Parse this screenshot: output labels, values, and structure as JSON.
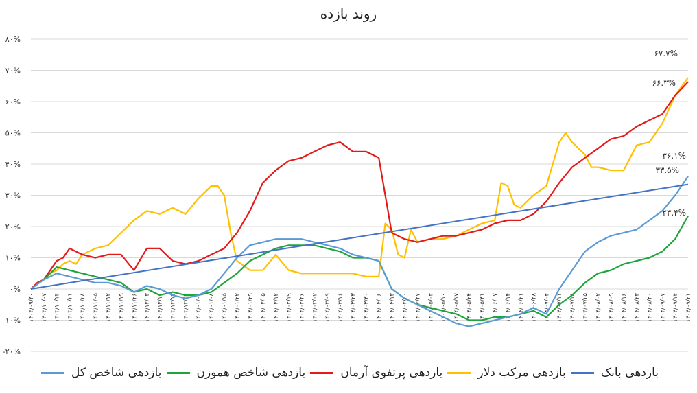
{
  "chart_data": {
    "type": "line",
    "title": "روند بازده",
    "ylim": [
      -20,
      80
    ],
    "yticks": [
      -20,
      -10,
      0,
      10,
      20,
      30,
      40,
      50,
      60,
      70,
      80
    ],
    "ytick_labels": [
      "-۲۰%",
      "-۱۰%",
      "۰%",
      "۱۰%",
      "۲۰%",
      "۳۰%",
      "۴۰%",
      "۵۰%",
      "۶۰%",
      "۷۰%",
      "۸۰%"
    ],
    "grid": true,
    "legend_position": "bottom",
    "x_labels": [
      "۱۴۰۳/۰۹/۳۰",
      "۱۴۰۳/۱۰/۰۷",
      "۱۴۰۳/۱۰/۱۴",
      "۱۴۰۳/۱۰/۲۱",
      "۱۴۰۳/۱۰/۲۸",
      "۱۴۰۳/۱۱/۰۵",
      "۱۴۰۳/۱۱/۱۲",
      "۱۴۰۳/۱۱/۱۹",
      "۱۴۰۳/۱۱/۲۶",
      "۱۴۰۳/۱۲/۰۳",
      "۱۴۰۳/۱۲/۱۰",
      "۱۴۰۳/۱۲/۱۷",
      "۱۴۰۳/۱۲/۲۴",
      "۱۴۰۴/۰۱/۰۱",
      "۱۴۰۴/۰۱/۰۸",
      "۱۴۰۴/۰۱/۱۵",
      "۱۴۰۴/۰۱/۲۲",
      "۱۴۰۴/۰۱/۲۹",
      "۱۴۰۴/۰۲/۰۵",
      "۱۴۰۴/۰۲/۱۲",
      "۱۴۰۴/۰۲/۱۹",
      "۱۴۰۴/۰۲/۲۶",
      "۱۴۰۴/۰۳/۰۲",
      "۱۴۰۴/۰۳/۰۹",
      "۱۴۰۴/۰۳/۱۶",
      "۱۴۰۴/۰۳/۲۳",
      "۱۴۰۴/۰۳/۳۰",
      "۱۴۰۴/۰۴/۰۶",
      "۱۴۰۴/۰۴/۱۳",
      "۱۴۰۴/۰۴/۲۰",
      "۱۴۰۴/۰۴/۲۷",
      "۱۴۰۴/۰۵/۰۳",
      "۱۴۰۴/۰۵/۱۰",
      "۱۴۰۴/۰۵/۱۷",
      "۱۴۰۴/۰۵/۲۴",
      "۱۴۰۴/۰۵/۳۱",
      "۱۴۰۴/۰۶/۰۷",
      "۱۴۰۴/۰۶/۱۴",
      "۱۴۰۴/۰۶/۲۱",
      "۱۴۰۴/۰۶/۲۸",
      "۱۴۰۴/۰۷/۰۴",
      "۱۴۰۴/۰۷/۱۱",
      "۱۴۰۴/۰۷/۱۸",
      "۱۴۰۴/۰۷/۲۵",
      "۱۴۰۴/۰۸/۰۲",
      "۱۴۰۴/۰۸/۰۹",
      "۱۴۰۴/۰۸/۱۶",
      "۱۴۰۴/۰۸/۲۳",
      "۱۴۰۴/۰۸/۳۰",
      "۱۴۰۴/۰۹/۰۷",
      "۱۴۰۴/۰۹/۱۴",
      "۱۴۰۴/۰۹/۲۱"
    ],
    "series": [
      {
        "name": "بازدهی بانک",
        "color": "#4472c4",
        "points": [
          [
            0,
            0
          ],
          [
            51,
            33.5
          ]
        ]
      },
      {
        "name": "بازدهی مرکب دلار",
        "color": "#ffc000",
        "points": [
          [
            0,
            0
          ],
          [
            0.5,
            2
          ],
          [
            1,
            3
          ],
          [
            1.5,
            5
          ],
          [
            2,
            6
          ],
          [
            2.5,
            8
          ],
          [
            3,
            9
          ],
          [
            3.5,
            8
          ],
          [
            4,
            11
          ],
          [
            5,
            13
          ],
          [
            6,
            14
          ],
          [
            7,
            18
          ],
          [
            8,
            22
          ],
          [
            9,
            25
          ],
          [
            10,
            24
          ],
          [
            11,
            26
          ],
          [
            12,
            24
          ],
          [
            13,
            29
          ],
          [
            14,
            33
          ],
          [
            14.5,
            33
          ],
          [
            15,
            30
          ],
          [
            15.5,
            18
          ],
          [
            16,
            9
          ],
          [
            17,
            6
          ],
          [
            18,
            6
          ],
          [
            19,
            11
          ],
          [
            20,
            6
          ],
          [
            21,
            5
          ],
          [
            22,
            5
          ],
          [
            23,
            5
          ],
          [
            24,
            5
          ],
          [
            25,
            5
          ],
          [
            26,
            4
          ],
          [
            27,
            4
          ],
          [
            27.5,
            21
          ],
          [
            28,
            19
          ],
          [
            28.5,
            11
          ],
          [
            29,
            10
          ],
          [
            29.5,
            19
          ],
          [
            30,
            15
          ],
          [
            31,
            16
          ],
          [
            32,
            16
          ],
          [
            33,
            17
          ],
          [
            34,
            19
          ],
          [
            35,
            21
          ],
          [
            36,
            22
          ],
          [
            36.5,
            34
          ],
          [
            37,
            33
          ],
          [
            37.5,
            27
          ],
          [
            38,
            26
          ],
          [
            39,
            30
          ],
          [
            40,
            33
          ],
          [
            41,
            47
          ],
          [
            41.5,
            50
          ],
          [
            42,
            47
          ],
          [
            43,
            43
          ],
          [
            43.5,
            39
          ],
          [
            44,
            39
          ],
          [
            45,
            38
          ],
          [
            46,
            38
          ],
          [
            47,
            46
          ],
          [
            48,
            47
          ],
          [
            49,
            53
          ],
          [
            50,
            62
          ],
          [
            51,
            67.7
          ]
        ],
        "label": "۶۷.۷%"
      },
      {
        "name": "بازدهی پرتفوی آرمان",
        "color": "#e31a1a",
        "points": [
          [
            0,
            0
          ],
          [
            0.5,
            2
          ],
          [
            1,
            3
          ],
          [
            1.5,
            6
          ],
          [
            2,
            9
          ],
          [
            2.5,
            10
          ],
          [
            3,
            13
          ],
          [
            3.5,
            12
          ],
          [
            4,
            11
          ],
          [
            5,
            10
          ],
          [
            6,
            11
          ],
          [
            7,
            11
          ],
          [
            8,
            6
          ],
          [
            9,
            13
          ],
          [
            10,
            13
          ],
          [
            11,
            9
          ],
          [
            12,
            8
          ],
          [
            13,
            9
          ],
          [
            14,
            11
          ],
          [
            15,
            13
          ],
          [
            16,
            18
          ],
          [
            17,
            25
          ],
          [
            18,
            34
          ],
          [
            19,
            38
          ],
          [
            20,
            41
          ],
          [
            21,
            42
          ],
          [
            22,
            44
          ],
          [
            23,
            46
          ],
          [
            24,
            47
          ],
          [
            25,
            44
          ],
          [
            26,
            44
          ],
          [
            27,
            42
          ],
          [
            28,
            18
          ],
          [
            29,
            16
          ],
          [
            30,
            15
          ],
          [
            31,
            16
          ],
          [
            32,
            17
          ],
          [
            33,
            17
          ],
          [
            34,
            18
          ],
          [
            35,
            19
          ],
          [
            36,
            21
          ],
          [
            37,
            22
          ],
          [
            38,
            22
          ],
          [
            39,
            24
          ],
          [
            40,
            28
          ],
          [
            41,
            34
          ],
          [
            42,
            39
          ],
          [
            43,
            42
          ],
          [
            44,
            45
          ],
          [
            45,
            48
          ],
          [
            46,
            49
          ],
          [
            47,
            52
          ],
          [
            48,
            54
          ],
          [
            49,
            56
          ],
          [
            50,
            62
          ],
          [
            51,
            66.3
          ]
        ],
        "label": "۶۶.۳%"
      },
      {
        "name": "بازدهی  شاخص هموزن",
        "color": "#1fa33b",
        "points": [
          [
            0,
            0
          ],
          [
            1,
            3
          ],
          [
            2,
            7
          ],
          [
            3,
            6
          ],
          [
            4,
            5
          ],
          [
            5,
            4
          ],
          [
            6,
            3
          ],
          [
            7,
            2
          ],
          [
            8,
            -1
          ],
          [
            9,
            0
          ],
          [
            10,
            -2
          ],
          [
            11,
            -1
          ],
          [
            12,
            -2
          ],
          [
            13,
            -2
          ],
          [
            14,
            -1
          ],
          [
            15,
            2
          ],
          [
            16,
            5
          ],
          [
            17,
            9
          ],
          [
            18,
            11
          ],
          [
            19,
            13
          ],
          [
            20,
            14
          ],
          [
            21,
            14
          ],
          [
            22,
            14
          ],
          [
            23,
            13
          ],
          [
            24,
            12
          ],
          [
            25,
            10
          ],
          [
            26,
            10
          ],
          [
            27,
            9
          ],
          [
            28,
            0
          ],
          [
            29,
            -3
          ],
          [
            30,
            -5
          ],
          [
            31,
            -6
          ],
          [
            32,
            -7
          ],
          [
            33,
            -8
          ],
          [
            34,
            -10
          ],
          [
            35,
            -10
          ],
          [
            36,
            -9
          ],
          [
            37,
            -9
          ],
          [
            38,
            -8
          ],
          [
            39,
            -7
          ],
          [
            40,
            -9
          ],
          [
            41,
            -5
          ],
          [
            42,
            -2
          ],
          [
            43,
            2
          ],
          [
            44,
            5
          ],
          [
            45,
            6
          ],
          [
            46,
            8
          ],
          [
            47,
            9
          ],
          [
            48,
            10
          ],
          [
            49,
            12
          ],
          [
            50,
            16
          ],
          [
            51,
            23.4
          ]
        ],
        "label": "۲۳.۴%"
      },
      {
        "name": "بازدهی شاخص کل",
        "color": "#5b9bd5",
        "points": [
          [
            0,
            0
          ],
          [
            1,
            3
          ],
          [
            2,
            5
          ],
          [
            3,
            4
          ],
          [
            4,
            3
          ],
          [
            5,
            2
          ],
          [
            6,
            2
          ],
          [
            7,
            1
          ],
          [
            8,
            -1
          ],
          [
            9,
            1
          ],
          [
            10,
            0
          ],
          [
            11,
            -2
          ],
          [
            12,
            -3
          ],
          [
            13,
            -2
          ],
          [
            14,
            0
          ],
          [
            15,
            5
          ],
          [
            16,
            10
          ],
          [
            17,
            14
          ],
          [
            18,
            15
          ],
          [
            19,
            16
          ],
          [
            20,
            16
          ],
          [
            21,
            16
          ],
          [
            22,
            15
          ],
          [
            23,
            14
          ],
          [
            24,
            13
          ],
          [
            25,
            11
          ],
          [
            26,
            10
          ],
          [
            27,
            9
          ],
          [
            28,
            0
          ],
          [
            29,
            -3
          ],
          [
            30,
            -5
          ],
          [
            31,
            -7
          ],
          [
            32,
            -9
          ],
          [
            33,
            -11
          ],
          [
            34,
            -12
          ],
          [
            35,
            -11
          ],
          [
            36,
            -10
          ],
          [
            37,
            -9
          ],
          [
            38,
            -8
          ],
          [
            39,
            -6
          ],
          [
            40,
            -8
          ],
          [
            41,
            0
          ],
          [
            42,
            6
          ],
          [
            43,
            12
          ],
          [
            44,
            15
          ],
          [
            45,
            17
          ],
          [
            46,
            18
          ],
          [
            47,
            19
          ],
          [
            48,
            22
          ],
          [
            49,
            25
          ],
          [
            50,
            30
          ],
          [
            51,
            36.1
          ]
        ],
        "label": "۳۶.۱%"
      }
    ],
    "bank_end_label": "۳۳.۵%"
  }
}
